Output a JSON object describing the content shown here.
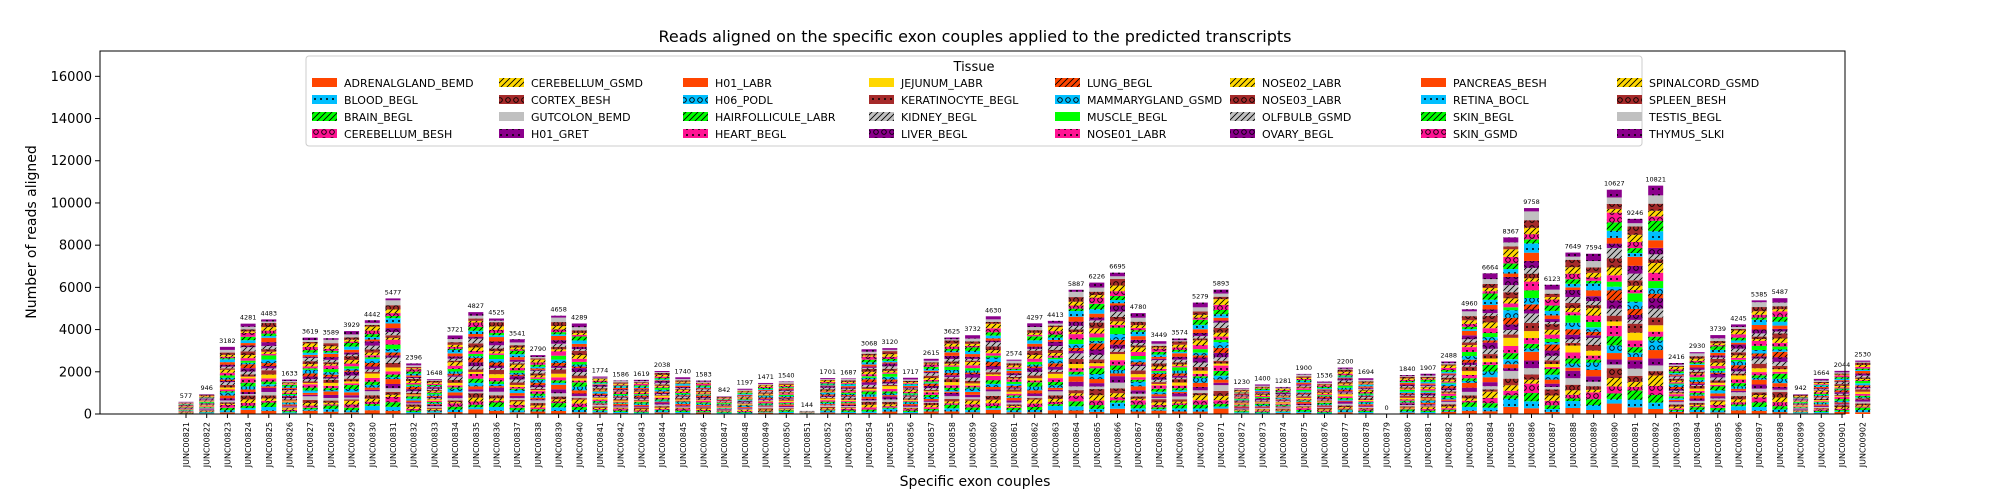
{
  "chart_data": {
    "type": "bar",
    "stacked": true,
    "title": "Reads aligned on the specific exon couples applied to the predicted transcripts",
    "xlabel": "Specific exon couples",
    "ylabel": "Number of reads aligned",
    "ylim": [
      0,
      17200
    ],
    "yticks": [
      0,
      2000,
      4000,
      6000,
      8000,
      10000,
      12000,
      14000,
      16000
    ],
    "legend_title": "Tissue",
    "legend_position": "top-center",
    "categories": [
      "JUNC00821",
      "JUNC00822",
      "JUNC00823",
      "JUNC00824",
      "JUNC00825",
      "JUNC00826",
      "JUNC00827",
      "JUNC00828",
      "JUNC00829",
      "JUNC00830",
      "JUNC00831",
      "JUNC00832",
      "JUNC00833",
      "JUNC00834",
      "JUNC00835",
      "JUNC00836",
      "JUNC00837",
      "JUNC00838",
      "JUNC00839",
      "JUNC00840",
      "JUNC00841",
      "JUNC00842",
      "JUNC00843",
      "JUNC00844",
      "JUNC00845",
      "JUNC00846",
      "JUNC00847",
      "JUNC00848",
      "JUNC00849",
      "JUNC00850",
      "JUNC00851",
      "JUNC00852",
      "JUNC00853",
      "JUNC00854",
      "JUNC00855",
      "JUNC00856",
      "JUNC00857",
      "JUNC00858",
      "JUNC00859",
      "JUNC00860",
      "JUNC00861",
      "JUNC00862",
      "JUNC00863",
      "JUNC00864",
      "JUNC00865",
      "JUNC00866",
      "JUNC00867",
      "JUNC00868",
      "JUNC00869",
      "JUNC00870",
      "JUNC00871",
      "JUNC00872",
      "JUNC00873",
      "JUNC00874",
      "JUNC00875",
      "JUNC00876",
      "JUNC00877",
      "JUNC00878",
      "JUNC00879",
      "JUNC00880",
      "JUNC00881",
      "JUNC00882",
      "JUNC00883",
      "JUNC00884",
      "JUNC00885",
      "JUNC00886",
      "JUNC00887",
      "JUNC00888",
      "JUNC00889",
      "JUNC00890",
      "JUNC00891",
      "JUNC00892",
      "JUNC00893",
      "JUNC00894",
      "JUNC00895",
      "JUNC00896",
      "JUNC00897",
      "JUNC00898",
      "JUNC00899",
      "JUNC00900",
      "JUNC00901",
      "JUNC00902"
    ],
    "totals": [
      577,
      946,
      3182,
      4281,
      4483,
      1633,
      3619,
      3589,
      3929,
      4442,
      5477,
      2396,
      1648,
      3721,
      4827,
      4525,
      3541,
      2790,
      4658,
      4289,
      1774,
      1586,
      1619,
      2038,
      1740,
      1583,
      842,
      1197,
      1471,
      1540,
      144,
      1701,
      1687,
      3068,
      3120,
      1717,
      2615,
      3625,
      3732,
      4630,
      2574,
      4297,
      4413,
      5887,
      6226,
      6695,
      4780,
      3449,
      3574,
      5279,
      5893,
      1230,
      1400,
      1281,
      1900,
      1536,
      2200,
      1694,
      0,
      1840,
      1907,
      2488,
      4960,
      6664,
      8367,
      9758,
      6123,
      7649,
      7594,
      10627,
      9246,
      10821,
      2416,
      2930,
      3739,
      4245,
      5385,
      5487,
      942,
      1664,
      2044,
      2530
    ],
    "series": [
      {
        "name": "ADRENALGLAND_BEMD",
        "color": "#ff4500",
        "hatch": "none"
      },
      {
        "name": "BLOOD_BEGL",
        "color": "#00bfff",
        "hatch": "dot"
      },
      {
        "name": "BRAIN_BEGL",
        "color": "#00ff00",
        "hatch": "slash"
      },
      {
        "name": "CEREBELLUM_BESH",
        "color": "#ff1493",
        "hatch": "circle"
      },
      {
        "name": "CEREBELLUM_GSMD",
        "color": "#ffd700",
        "hatch": "slash"
      },
      {
        "name": "CORTEX_BESH",
        "color": "#a52a2a",
        "hatch": "circle"
      },
      {
        "name": "GUTCOLON_BEMD",
        "color": "#c0c0c0",
        "hatch": "none"
      },
      {
        "name": "H01_GRET",
        "color": "#8b008b",
        "hatch": "dot"
      },
      {
        "name": "H01_LABR",
        "color": "#ff4500",
        "hatch": "none"
      },
      {
        "name": "H06_PODL",
        "color": "#00bfff",
        "hatch": "circle"
      },
      {
        "name": "HAIRFOLLICULE_LABR",
        "color": "#00ff00",
        "hatch": "slash"
      },
      {
        "name": "HEART_BEGL",
        "color": "#ff1493",
        "hatch": "dot"
      },
      {
        "name": "JEJUNUM_LABR",
        "color": "#ffd700",
        "hatch": "none"
      },
      {
        "name": "KERATINOCYTE_BEGL",
        "color": "#a52a2a",
        "hatch": "dot"
      },
      {
        "name": "KIDNEY_BEGL",
        "color": "#c0c0c0",
        "hatch": "slash"
      },
      {
        "name": "LIVER_BEGL",
        "color": "#8b008b",
        "hatch": "circle"
      },
      {
        "name": "LUNG_BEGL",
        "color": "#ff4500",
        "hatch": "slash"
      },
      {
        "name": "MAMMARYGLAND_GSMD",
        "color": "#00bfff",
        "hatch": "circle"
      },
      {
        "name": "MUSCLE_BEGL",
        "color": "#00ff00",
        "hatch": "none"
      },
      {
        "name": "NOSE01_LABR",
        "color": "#ff1493",
        "hatch": "dot"
      },
      {
        "name": "NOSE02_LABR",
        "color": "#ffd700",
        "hatch": "slash"
      },
      {
        "name": "NOSE03_LABR",
        "color": "#a52a2a",
        "hatch": "circle"
      },
      {
        "name": "OLFBULB_GSMD",
        "color": "#c0c0c0",
        "hatch": "slash"
      },
      {
        "name": "OVARY_BEGL",
        "color": "#8b008b",
        "hatch": "circle"
      },
      {
        "name": "PANCREAS_BESH",
        "color": "#ff4500",
        "hatch": "none"
      },
      {
        "name": "RETINA_BOCL",
        "color": "#00bfff",
        "hatch": "dot"
      },
      {
        "name": "SKIN_BEGL",
        "color": "#00ff00",
        "hatch": "slash"
      },
      {
        "name": "SKIN_GSMD",
        "color": "#ff1493",
        "hatch": "circle"
      },
      {
        "name": "SPINALCORD_GSMD",
        "color": "#ffd700",
        "hatch": "slash"
      },
      {
        "name": "SPLEEN_BESH",
        "color": "#a52a2a",
        "hatch": "circle"
      },
      {
        "name": "TESTIS_BEGL",
        "color": "#c0c0c0",
        "hatch": "none"
      },
      {
        "name": "THYMUS_SLKI",
        "color": "#8b008b",
        "hatch": "dot"
      }
    ]
  }
}
